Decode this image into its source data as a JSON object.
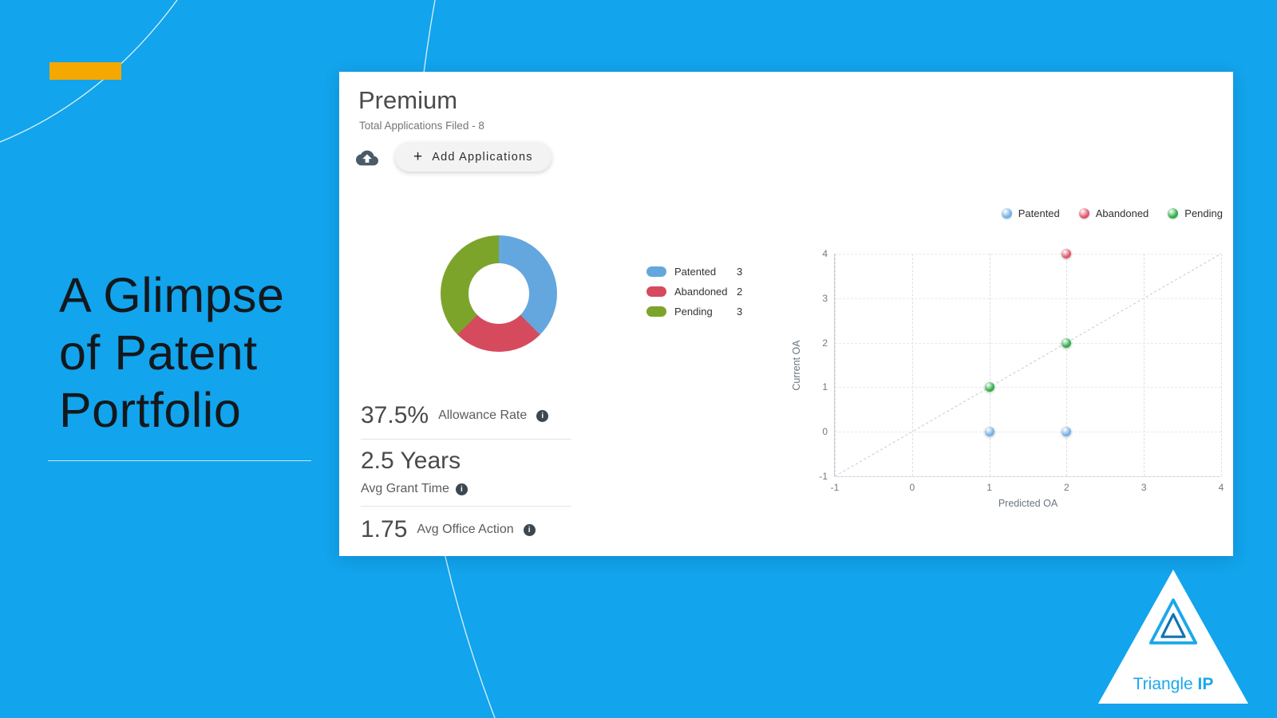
{
  "slide": {
    "title_lines": [
      "A Glimpse",
      "of Patent",
      "Portfolio"
    ],
    "background_color": "#12a4ec",
    "accent_bar_color": "#f5a800"
  },
  "card": {
    "plan_title": "Premium",
    "subtitle": "Total Applications Filed - 8",
    "add_button_label": "Add Applications",
    "stats": [
      {
        "value": "37.5%",
        "label": "Allowance Rate"
      },
      {
        "value": "2.5 Years",
        "label": "Avg Grant Time"
      },
      {
        "value": "1.75",
        "label": "Avg Office Action"
      }
    ]
  },
  "chart_data": [
    {
      "type": "pie",
      "donut": true,
      "labels": [
        "Patented",
        "Abandoned",
        "Pending"
      ],
      "values": [
        3,
        2,
        3
      ],
      "colors": [
        "#64a7de",
        "#d64a5e",
        "#7da42a"
      ],
      "legend_position": "right"
    },
    {
      "type": "scatter",
      "xlabel": "Predicted OA",
      "ylabel": "Current OA",
      "xlim": [
        -1,
        4
      ],
      "ylim": [
        -1,
        4
      ],
      "xticks": [
        -1,
        0,
        1,
        2,
        3,
        4
      ],
      "yticks": [
        -1,
        0,
        1,
        2,
        3,
        4
      ],
      "grid": "dashed",
      "diagonal_reference_line": true,
      "legend_position": "top-right",
      "series": [
        {
          "name": "Patented",
          "color": "#74b1e6",
          "points": [
            [
              1,
              0
            ],
            [
              2,
              0
            ]
          ]
        },
        {
          "name": "Abandoned",
          "color": "#e0556a",
          "points": [
            [
              2,
              4
            ]
          ]
        },
        {
          "name": "Pending",
          "color": "#2fae4a",
          "points": [
            [
              1,
              1
            ],
            [
              2,
              2
            ]
          ]
        }
      ]
    }
  ],
  "logo": {
    "text_regular": "Triangle",
    "text_bold": "IP",
    "brand_color": "#1ba8ea"
  }
}
